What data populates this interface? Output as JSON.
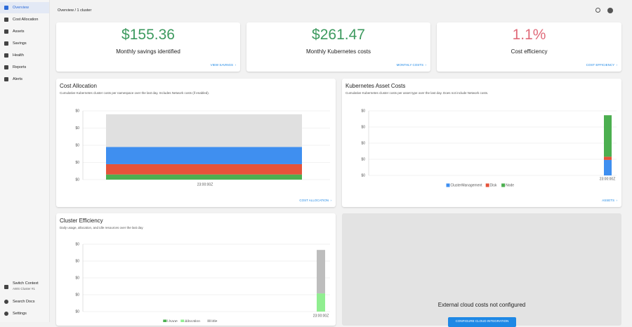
{
  "sidebar": {
    "items": [
      "Overview",
      "Cost Allocation",
      "Assets",
      "Savings",
      "Health",
      "Reports",
      "Alerts"
    ],
    "context": {
      "label": "Switch Context",
      "sub": "AWS Cluster #1"
    },
    "bottom": [
      "Search Docs",
      "Settings"
    ]
  },
  "header": {
    "breadcrumb": "Overview / 1 cluster"
  },
  "kpis": [
    {
      "value": "$155.36",
      "label": "Monthly savings identified",
      "link": "VIEW SAVINGS"
    },
    {
      "value": "$261.47",
      "label": "Monthly Kubernetes costs",
      "link": "MONTHLY COSTS"
    },
    {
      "value": "1.1%",
      "label": "Cost efficiency",
      "link": "COST EFFICIENCY"
    }
  ],
  "panels": {
    "allocation": {
      "title": "Cost Allocation",
      "subtitle": "Cumulative Kubernetes cluster costs per namespace over the last day. Includes Network costs (if enabled).",
      "link": "COST ALLOCATION",
      "chart": {
        "type": "bar",
        "stacked": true,
        "categories": [
          "23:00:00Z"
        ],
        "series": [
          {
            "color": "#4caf50",
            "values": [
              0.0003
            ]
          },
          {
            "color": "#e5533a",
            "values": [
              0.0006
            ]
          },
          {
            "color": "#3f8ff0",
            "values": [
              0.001
            ]
          },
          {
            "color": "#e0e0e0",
            "values": [
              0.0019
            ]
          }
        ],
        "ylim": [
          0,
          0.004
        ],
        "yticks": [
          {
            "value": 0,
            "label": "$0"
          },
          {
            "value": 0.001,
            "label": "$0"
          },
          {
            "value": 0.002,
            "label": "$0"
          },
          {
            "value": 0.003,
            "label": "$0"
          },
          {
            "value": 0.004,
            "label": "$0"
          }
        ],
        "grid": true
      }
    },
    "assets": {
      "title": "Kubernetes Asset Costs",
      "subtitle": "Cumulative Kubernetes cluster costs per asset type over the last day. Does not include Network costs.",
      "link": "ASSETS",
      "chart": {
        "type": "bar",
        "stacked": true,
        "categories": [
          "23:00:00Z"
        ],
        "series": [
          {
            "name": "ClusterManagement",
            "color": "#3f8ff0",
            "values": [
              0.00096
            ]
          },
          {
            "name": "Disk",
            "color": "#e5533a",
            "values": [
              0.0002
            ]
          },
          {
            "name": "Node",
            "color": "#4caf50",
            "values": [
              0.00257
            ]
          }
        ],
        "ylim": [
          0,
          0.004
        ],
        "yticks": [
          {
            "value": 0,
            "label": "$0"
          },
          {
            "value": 0.001,
            "label": "$0"
          },
          {
            "value": 0.002,
            "label": "$0"
          },
          {
            "value": 0.003,
            "label": "$0"
          },
          {
            "value": 0.004,
            "label": "$0"
          }
        ],
        "grid": true
      }
    },
    "efficiency": {
      "title": "Cluster Efficiency",
      "subtitle": "Daily usage, allocation, and idle resources over the last day",
      "chart": {
        "type": "bar",
        "stacked": true,
        "categories": [
          "23:00:00Z"
        ],
        "series": [
          {
            "name": "Usage",
            "color": "#4caf50",
            "values": [
              0
            ]
          },
          {
            "name": "Allocation",
            "color": "#90ee90",
            "values": [
              0.00108
            ]
          },
          {
            "name": "Idle",
            "color": "#bdbdbd",
            "values": [
              0.00258
            ]
          }
        ],
        "ylim": [
          0,
          0.004
        ],
        "yticks": [
          {
            "value": 0,
            "label": "$0"
          },
          {
            "value": 0.001,
            "label": "$0"
          },
          {
            "value": 0.002,
            "label": "$0"
          },
          {
            "value": 0.003,
            "label": "$0"
          },
          {
            "value": 0.004,
            "label": "$0"
          }
        ],
        "grid": true
      }
    },
    "cloud": {
      "message": "External cloud costs not configured",
      "button": "CONFIGURE CLOUD INTEGRATION"
    }
  }
}
